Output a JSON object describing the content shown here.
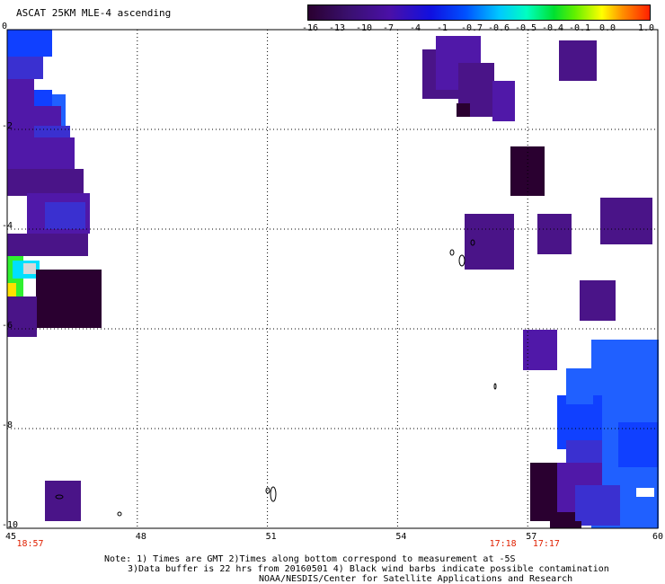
{
  "title": "ASCAT 25KM MLE-4 ascending",
  "colorbar": {
    "tick_labels": [
      "-16",
      "-13",
      "-10",
      "-7",
      "-4",
      "-1",
      "-0.7",
      "-0.6",
      "-0.5",
      "-0.4",
      "-0.1",
      "0.0",
      "1.0"
    ]
  },
  "map": {
    "x_ticks": [
      "45",
      "48",
      "51",
      "54",
      "57",
      "60"
    ],
    "y_ticks": [
      "0",
      "-2",
      "-4",
      "-6",
      "-8",
      "-10"
    ],
    "x_range": [
      45,
      60
    ],
    "y_range": [
      0,
      -10
    ],
    "time_labels": [
      {
        "text": "18:57",
        "lon": 45.3
      },
      {
        "text": "17:18",
        "lon": 56.2
      },
      {
        "text": "17:17",
        "lon": 57.2
      }
    ],
    "colors": {
      "dark": "#2a0030",
      "purple": "#4a1488",
      "violet": "#5018a8",
      "blue_violet": "#3a30d0",
      "blue": "#1040ff",
      "light_blue": "#2060ff",
      "cyan": "#00e0ff",
      "green": "#30f030",
      "yellow": "#ffe000",
      "white": "#ffffff",
      "light_gray": "#d8d8d8"
    }
  },
  "notes": {
    "line1": "Note: 1) Times are GMT 2)Times along bottom correspond to measurement at -5S",
    "line2": "3)Data buffer is 22 hrs from 20160501 4) Black wind barbs indicate possible contamination",
    "line3": "NOAA/NESDIS/Center for Satellite Applications and Research"
  }
}
